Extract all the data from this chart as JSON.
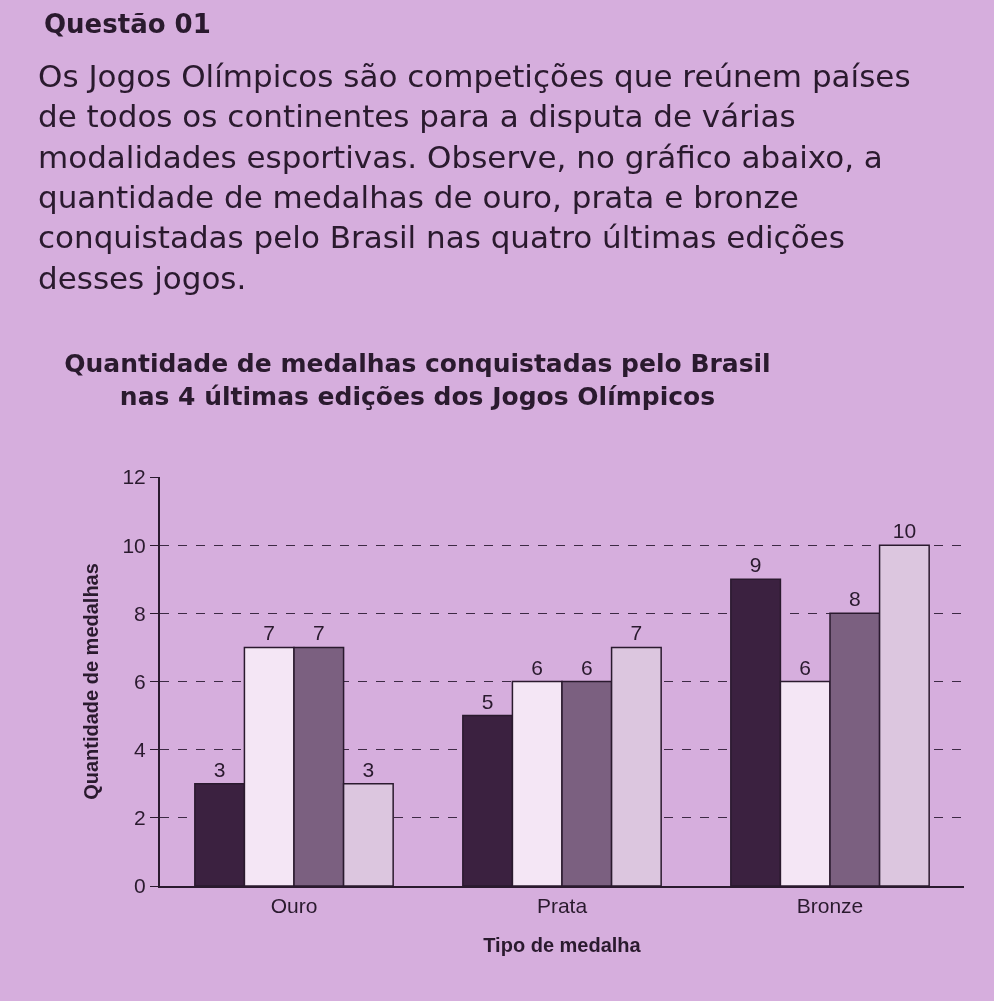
{
  "chart_data": {
    "type": "bar",
    "title": "Quantidade de medalhas conquistadas pelo Brasil nas 4 últimas edições dos Jogos Olímpicos",
    "xlabel": "Tipo de medalha",
    "ylabel": "Quantidade de medalhas",
    "annotations": [
      "Questão 01",
      "Os Jogos Olímpicos são competições que reúnem países de todos os continentes para a disputa de várias modalidades esportivas. Observe, no gráfico abaixo, a quantidade de medalhas de ouro, prata e bronze conquistadas pelo Brasil nas quatro últimas edições desses jogos."
    ],
    "categories": [
      "Ouro",
      "Prata",
      "Bronze"
    ],
    "series": [
      {
        "color": "#3b2140",
        "values": [
          3,
          5,
          9
        ]
      },
      {
        "color": "#f4e6f5",
        "values": [
          7,
          6,
          6
        ]
      },
      {
        "color": "#7b6080",
        "values": [
          7,
          6,
          8
        ]
      },
      {
        "color": "#dcc6df",
        "values": [
          3,
          7,
          10
        ]
      }
    ],
    "ylim": [
      0,
      12
    ],
    "yticks": [
      0,
      2,
      4,
      6,
      8,
      10,
      12
    ],
    "grid": "y",
    "data_labels": true
  }
}
